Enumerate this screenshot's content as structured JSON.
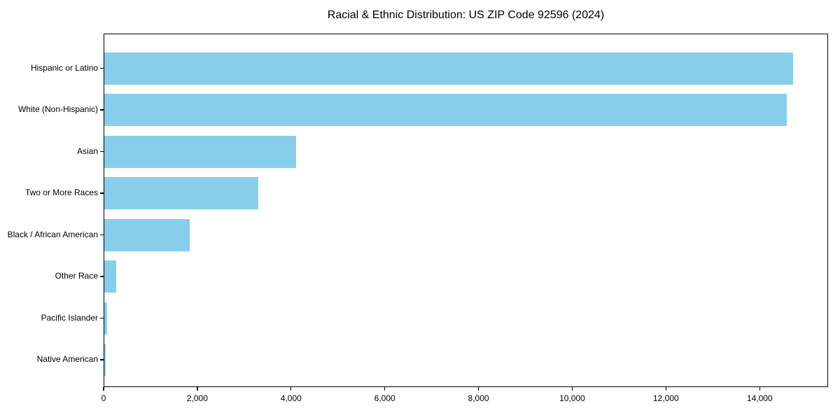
{
  "chart_data": {
    "type": "bar",
    "orientation": "horizontal",
    "title": "Racial & Ethnic Distribution: US ZIP Code 92596 (2024)",
    "categories": [
      "Hispanic or Latino",
      "White (Non-Hispanic)",
      "Asian",
      "Two or More Races",
      "Black / African American",
      "Other Race",
      "Pacific Islander",
      "Native American"
    ],
    "values": [
      14720,
      14580,
      4110,
      3295,
      1840,
      275,
      75,
      40
    ],
    "xlabel": "",
    "ylabel": "",
    "xlim": [
      0,
      15460
    ],
    "x_ticks": [
      0,
      2000,
      4000,
      6000,
      8000,
      10000,
      12000,
      14000
    ],
    "x_tick_labels": [
      "0",
      "2,000",
      "4,000",
      "6,000",
      "8,000",
      "10,000",
      "12,000",
      "14,000"
    ],
    "bar_color": "#87CEEB",
    "axis_color": "#000000",
    "text_color": "#000000",
    "background": "#FFFFFF",
    "grid": false,
    "legend": null
  }
}
